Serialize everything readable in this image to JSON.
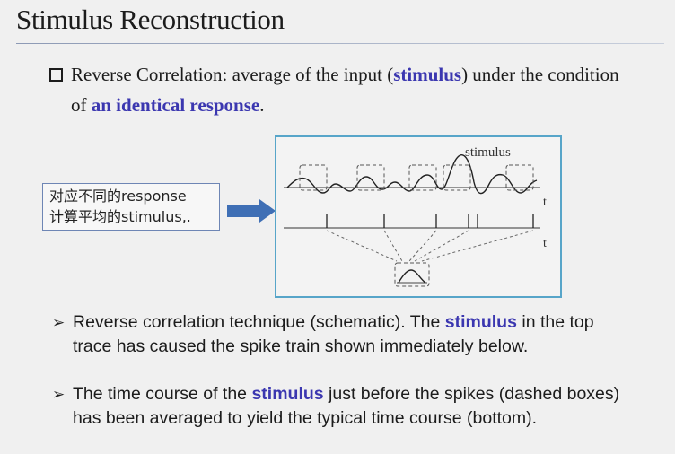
{
  "slide": {
    "title": "Stimulus Reconstruction"
  },
  "intro": {
    "line1_a": "Reverse Correlation: average of the input (",
    "line1_hl": "stimulus",
    "line1_b": ") under the condition",
    "line2_a": "of ",
    "line2_hl": "an identical response",
    "line2_b": "."
  },
  "callout": {
    "line1": "对应不同的response",
    "line2": "计算平均的stimulus,."
  },
  "figure": {
    "stimulus_label": "stimulus",
    "axis_label_top": "t",
    "axis_label_bottom": "t"
  },
  "notes": [
    {
      "line1_a": "Reverse correlation technique (schematic). The ",
      "line1_hl": "stimulus",
      "line1_b": " in the top",
      "line2": "trace has caused the spike train shown immediately below."
    },
    {
      "line1_a": "The time course of the ",
      "line1_hl": "stimulus",
      "line1_b": " just before the spikes (dashed boxes)",
      "line2": "has been averaged to yield the typical time course (bottom)."
    }
  ],
  "colors": {
    "highlight": "#3b37b0",
    "figure_border": "#57a5c9",
    "arrow": "#3f6fb5"
  },
  "icons": {
    "intro_bullet": "hollow-square-icon",
    "note_bullet": "arrowhead-bullet-icon",
    "callout_arrow": "right-arrow-icon"
  }
}
